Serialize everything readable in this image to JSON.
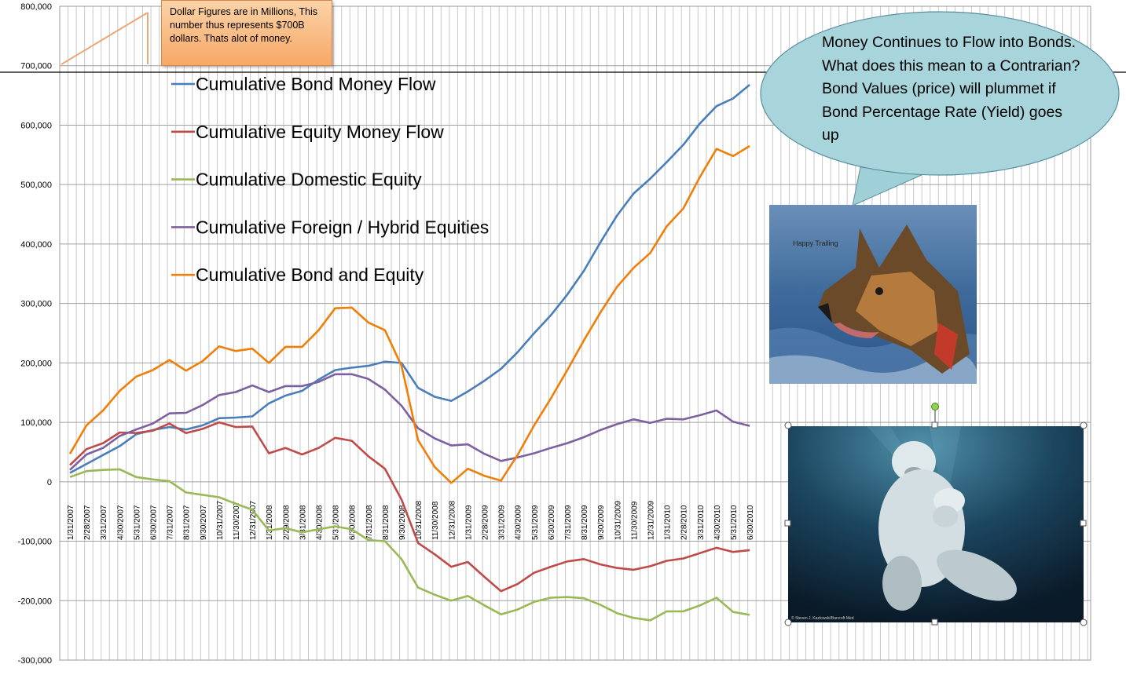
{
  "chart_data": {
    "type": "line",
    "categories": [
      "1/31/2007",
      "2/28/2007",
      "3/31/2007",
      "4/30/2007",
      "5/31/2007",
      "6/30/2007",
      "7/31/2007",
      "8/31/2007",
      "9/30/2007",
      "10/31/2007",
      "11/30/2007",
      "12/31/2007",
      "1/31/2008",
      "2/29/2008",
      "3/31/2008",
      "4/30/2008",
      "5/31/2008",
      "6/30/2008",
      "7/31/2008",
      "8/31/2008",
      "9/30/2008",
      "10/31/2008",
      "11/30/2008",
      "12/31/2008",
      "1/31/2009",
      "2/28/2009",
      "3/31/2009",
      "4/30/2009",
      "5/31/2009",
      "6/30/2009",
      "7/31/2009",
      "8/31/2009",
      "9/30/2009",
      "10/31/2009",
      "11/30/2009",
      "12/31/2009",
      "1/31/2010",
      "2/28/2010",
      "3/31/2010",
      "4/30/2010",
      "5/31/2010",
      "6/30/2010"
    ],
    "ylim": [
      -300000,
      800000
    ],
    "yticks": [
      "-300,000",
      "-200,000",
      "-100,000",
      "0",
      "100,000",
      "200,000",
      "300,000",
      "400,000",
      "500,000",
      "600,000",
      "700,000",
      "800,000"
    ],
    "grid": true,
    "legend_position": "upper-left",
    "series": [
      {
        "name": "Cumulative Bond Money Flow",
        "color": "#4a7ebb",
        "values": [
          15000,
          30000,
          45000,
          60000,
          80000,
          87000,
          92000,
          88000,
          95000,
          107000,
          108000,
          110000,
          132000,
          145000,
          153000,
          172000,
          188000,
          192000,
          195000,
          202000,
          200000,
          158000,
          143000,
          136000,
          152000,
          170000,
          190000,
          218000,
          250000,
          280000,
          315000,
          355000,
          403000,
          448000,
          485000,
          510000,
          538000,
          567000,
          603000,
          632000,
          645000,
          668000
        ]
      },
      {
        "name": "Cumulative Equity Money Flow",
        "color": "#be4b48",
        "values": [
          28000,
          55000,
          65000,
          83000,
          82000,
          86000,
          98000,
          82000,
          89000,
          100000,
          92000,
          93000,
          48000,
          57000,
          46000,
          57000,
          74000,
          69000,
          43000,
          22000,
          -30000,
          -103000,
          -122000,
          -143000,
          -135000,
          -160000,
          -184000,
          -172000,
          -153000,
          -143000,
          -134000,
          -130000,
          -139000,
          -145000,
          -148000,
          -142000,
          -133000,
          -129000,
          -120000,
          -111000,
          -118000,
          -115000
        ]
      },
      {
        "name": "Cumulative Domestic Equity",
        "color": "#98b954",
        "values": [
          8000,
          18000,
          20000,
          21000,
          8000,
          4000,
          1000,
          -18000,
          -22000,
          -26000,
          -37000,
          -47000,
          -82000,
          -78000,
          -85000,
          -80000,
          -75000,
          -80000,
          -98000,
          -100000,
          -130000,
          -178000,
          -190000,
          -200000,
          -192000,
          -208000,
          -223000,
          -215000,
          -202000,
          -195000,
          -194000,
          -196000,
          -207000,
          -221000,
          -229000,
          -233000,
          -218000,
          -218000,
          -208000,
          -195000,
          -219000,
          -224000
        ]
      },
      {
        "name": "Cumulative Foreign / Hybrid Equities",
        "color": "#7d60a0",
        "values": [
          20000,
          46000,
          57000,
          77000,
          88000,
          98000,
          115000,
          116000,
          129000,
          146000,
          151000,
          162000,
          151000,
          161000,
          161000,
          168000,
          181000,
          181000,
          173000,
          155000,
          128000,
          90000,
          73000,
          61000,
          63000,
          47000,
          35000,
          41000,
          48000,
          57000,
          65000,
          75000,
          87000,
          97000,
          105000,
          99000,
          106000,
          105000,
          112000,
          120000,
          101000,
          94000
        ]
      },
      {
        "name": "Cumulative Bond and Equity",
        "color": "#f07f09",
        "values": [
          47000,
          95000,
          120000,
          153000,
          177000,
          188000,
          205000,
          187000,
          203000,
          228000,
          220000,
          224000,
          200000,
          227000,
          227000,
          255000,
          292000,
          293000,
          268000,
          255000,
          195000,
          70000,
          25000,
          -2000,
          22000,
          10000,
          2000,
          45000,
          95000,
          140000,
          188000,
          238000,
          285000,
          328000,
          360000,
          385000,
          430000,
          460000,
          513000,
          560000,
          548000,
          565000
        ]
      }
    ]
  },
  "annotations": {
    "note": "Dollar Figures are in Millions, This number thus represents $700B dollars.  Thats alot of money.",
    "bubble": "Money Continues to Flow into Bonds.  What does this mean to a Contrarian?  Bond Values (price) will plummet if Bond Percentage Rate (Yield) goes up"
  },
  "images": {
    "dog": {
      "label": "german-shepherd-photo",
      "caption": "Happy Trailing"
    },
    "bear": {
      "label": "polar-bear-photo",
      "credit": "© Steven J. Kazlowski/Barcroft Med"
    }
  }
}
